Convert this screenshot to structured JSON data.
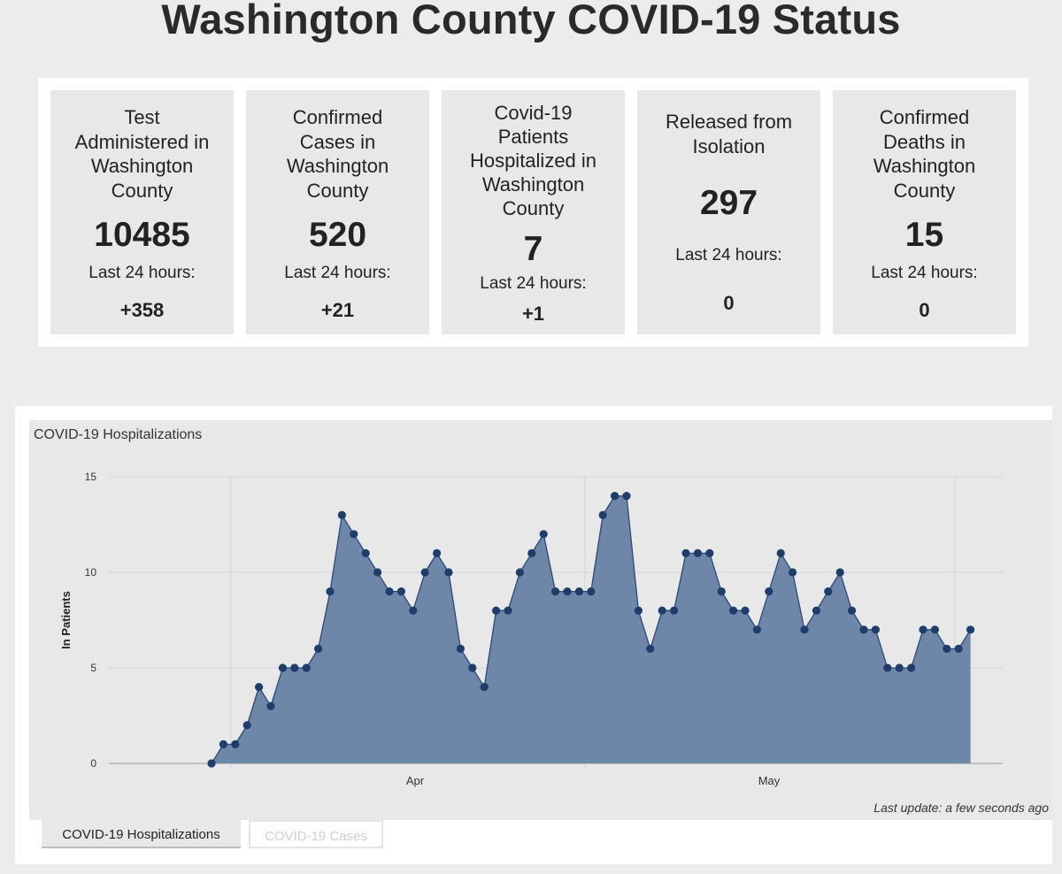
{
  "page_title": "Washington County COVID-19 Status",
  "stats": [
    {
      "title": [
        "Test",
        "Administered in",
        "Washington",
        "County"
      ],
      "value": "10485",
      "sub_label": "Last 24 hours:",
      "delta": "+358"
    },
    {
      "title": [
        "Confirmed",
        "Cases in",
        "Washington",
        "County"
      ],
      "value": "520",
      "sub_label": "Last 24 hours:",
      "delta": "+21"
    },
    {
      "title": [
        "Covid-19",
        "Patients",
        "Hospitalized in",
        "Washington",
        "County"
      ],
      "value": "7",
      "sub_label": "Last 24 hours:",
      "delta": "+1"
    },
    {
      "title": [
        "Released from",
        "Isolation"
      ],
      "value": "297",
      "sub_label": "Last 24 hours:",
      "delta": "0"
    },
    {
      "title": [
        "Confirmed",
        "Deaths in",
        "Washington",
        "County"
      ],
      "value": "15",
      "sub_label": "Last 24 hours:",
      "delta": "0"
    }
  ],
  "chart": {
    "title": "COVID-19 Hospitalizations",
    "last_update": "Last update: a few seconds ago"
  },
  "tabs": [
    {
      "label": "COVID-19 Hospitalizations",
      "active": true
    },
    {
      "label": "COVID-19 Cases",
      "active": false
    }
  ],
  "colors": {
    "fill": "#6e86a8",
    "line": "#2c4a78",
    "marker": "#1f3d6b"
  },
  "chart_data": {
    "type": "area",
    "title": "COVID-19 Hospitalizations",
    "xlabel": "",
    "ylabel": "In Patients",
    "ylim": [
      0,
      15
    ],
    "yticks": [
      0,
      5,
      10,
      15
    ],
    "xtick_labels": [
      "Apr",
      "May"
    ],
    "grid": true,
    "series": [
      {
        "values": [
          0,
          1,
          1,
          2,
          4,
          3,
          5,
          5,
          5,
          6,
          9,
          13,
          12,
          11,
          10,
          9,
          9,
          8,
          10,
          11,
          10,
          6,
          5,
          4,
          8,
          8,
          10,
          11,
          12,
          9,
          9,
          9,
          9,
          13,
          14,
          14,
          8,
          6,
          8,
          8,
          11,
          11,
          11,
          9,
          8,
          8,
          7,
          9,
          11,
          10,
          7,
          8,
          9,
          10,
          8,
          7,
          7,
          5,
          5,
          5,
          7,
          7,
          6,
          6,
          7
        ]
      }
    ]
  }
}
